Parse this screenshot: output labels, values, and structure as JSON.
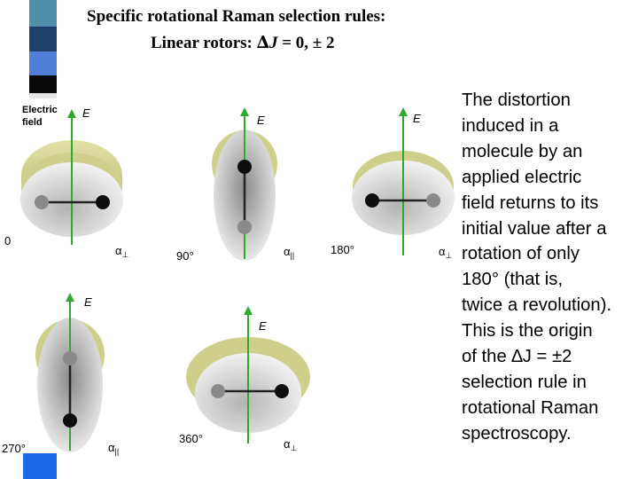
{
  "title": {
    "line1": "Specific rotational Raman selection rules:",
    "line2_prefix": "Linear rotors:",
    "delta": "∆",
    "j": "J",
    "line2_suffix": "= 0, ± 2"
  },
  "body_lines": [
    "The distortion",
    "induced in a",
    "molecule by an",
    "applied electric",
    "field returns to its",
    "initial value after a",
    "rotation of only",
    "180° (that is,",
    "twice a revolution).",
    "This is the origin",
    "of the ∆J = ±2",
    "selection rule in",
    "rotational Raman",
    "spectroscopy."
  ],
  "diagram": {
    "legend": {
      "line1": "Electric",
      "line2": "field"
    },
    "field_label": "E",
    "angles": [
      "0",
      "90°",
      "180°",
      "270°",
      "360°"
    ],
    "alpha": "α",
    "sub_perp": "⊥",
    "sub_par": "||",
    "colors": {
      "field": "#2fa82f",
      "bond": "#222222",
      "atom_big": "#0d0d0d",
      "atom_small": "#8a8a8a",
      "halo": "#cfcf8c"
    }
  },
  "decor_stripes": [
    "#4f8fa9",
    "#1e3e6b",
    "#4f7fd6",
    "#1d6ae6",
    "#0a0a0a",
    "#e6e6e6",
    "#1d6ae6"
  ]
}
